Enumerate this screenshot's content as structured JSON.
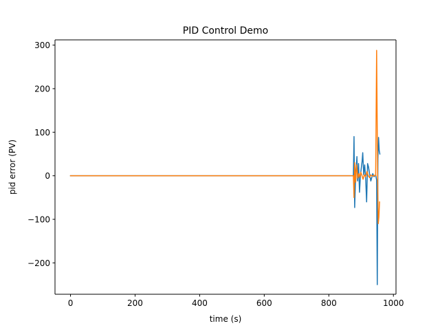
{
  "chart_data": {
    "type": "line",
    "title": "PID Control Demo",
    "xlabel": "time (s)",
    "ylabel": "pid error (PV)",
    "xlim": [
      -48,
      1008
    ],
    "ylim": [
      -272,
      312
    ],
    "xticks": [
      0,
      200,
      400,
      600,
      800,
      1000
    ],
    "yticks": [
      -200,
      -100,
      0,
      100,
      200,
      300
    ],
    "xtick_labels": [
      "0",
      "200",
      "400",
      "600",
      "800",
      "1000"
    ],
    "ytick_labels": [
      "−200",
      "−100",
      "0",
      "100",
      "200",
      "300"
    ],
    "grid": false,
    "legend": null,
    "series": [
      {
        "color": "#1f77b4",
        "points": [
          [
            0,
            0
          ],
          [
            876,
            0
          ],
          [
            878,
            90
          ],
          [
            880,
            -73
          ],
          [
            883,
            5
          ],
          [
            885,
            20
          ],
          [
            887,
            44
          ],
          [
            889,
            -12
          ],
          [
            892,
            28
          ],
          [
            895,
            -38
          ],
          [
            898,
            2
          ],
          [
            903,
            33
          ],
          [
            905,
            53
          ],
          [
            908,
            2
          ],
          [
            911,
            25
          ],
          [
            914,
            -5
          ],
          [
            917,
            -60
          ],
          [
            920,
            28
          ],
          [
            923,
            20
          ],
          [
            926,
            5
          ],
          [
            930,
            -12
          ],
          [
            933,
            -4
          ],
          [
            936,
            5
          ],
          [
            940,
            -2
          ],
          [
            945,
            2
          ],
          [
            948,
            -10
          ],
          [
            950,
            -250
          ],
          [
            952,
            40
          ],
          [
            954,
            88
          ],
          [
            956,
            58
          ],
          [
            958,
            50
          ]
        ]
      },
      {
        "color": "#ff7f0e",
        "points": [
          [
            0,
            0
          ],
          [
            876,
            0
          ],
          [
            878,
            -50
          ],
          [
            880,
            30
          ],
          [
            883,
            -15
          ],
          [
            886,
            25
          ],
          [
            890,
            -5
          ],
          [
            893,
            5
          ],
          [
            896,
            -3
          ],
          [
            899,
            8
          ],
          [
            902,
            2
          ],
          [
            906,
            -8
          ],
          [
            910,
            2
          ],
          [
            914,
            -2
          ],
          [
            918,
            10
          ],
          [
            922,
            0
          ],
          [
            926,
            -4
          ],
          [
            930,
            2
          ],
          [
            935,
            -1
          ],
          [
            940,
            1
          ],
          [
            945,
            0
          ],
          [
            948,
            288
          ],
          [
            951,
            5
          ],
          [
            953,
            -110
          ],
          [
            955,
            -95
          ],
          [
            957,
            -60
          ]
        ]
      }
    ]
  }
}
